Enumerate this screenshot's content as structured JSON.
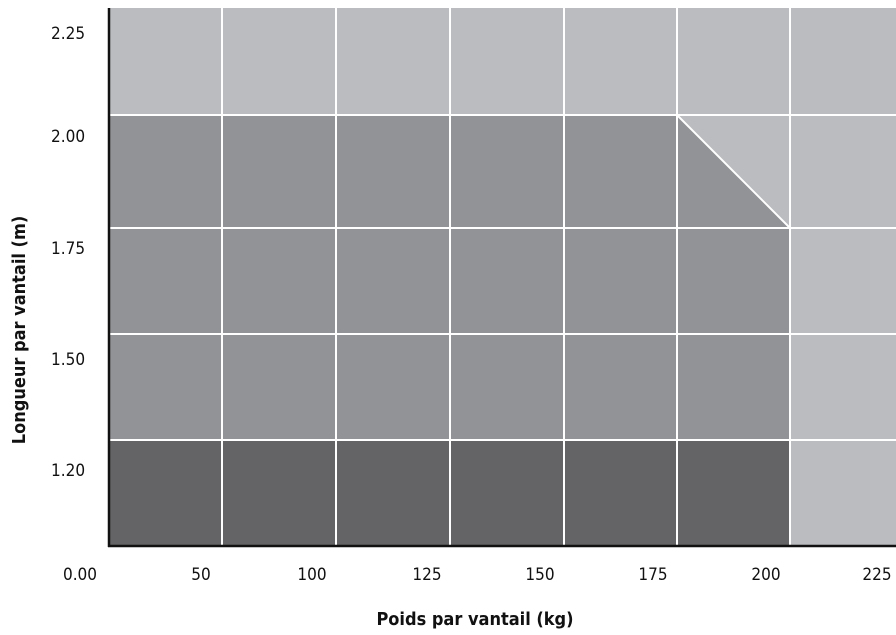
{
  "chart_data": {
    "type": "heatmap",
    "title": "",
    "xlabel": "Poids par vantail (kg)",
    "ylabel": "Longueur par vantail (m)",
    "x_origin_label": "0.00",
    "x_ticks": [
      "50",
      "100",
      "125",
      "150",
      "175",
      "200",
      "225"
    ],
    "y_ticks": [
      "1.20",
      "1.50",
      "1.75",
      "2.00",
      "2.25"
    ],
    "grid": true,
    "zone_colors": {
      "dark": "#646466",
      "medium": "#929396",
      "light": "#bbbcbf",
      "grid_line": "#ffffff",
      "axis": "#111111"
    },
    "rows": [
      {
        "y": "2.25",
        "cells": [
          "light",
          "light",
          "light",
          "light",
          "light",
          "light",
          "light"
        ]
      },
      {
        "y": "2.00",
        "cells": [
          "medium",
          "medium",
          "medium",
          "medium",
          "medium",
          "split",
          "light"
        ]
      },
      {
        "y": "1.75",
        "cells": [
          "medium",
          "medium",
          "medium",
          "medium",
          "medium",
          "medium",
          "light"
        ]
      },
      {
        "y": "1.50",
        "cells": [
          "medium",
          "medium",
          "medium",
          "medium",
          "medium",
          "medium",
          "light"
        ]
      },
      {
        "y": "1.20",
        "cells": [
          "dark",
          "dark",
          "dark",
          "dark",
          "dark",
          "dark",
          "light"
        ]
      }
    ],
    "split_cell": {
      "lower_left": "medium",
      "upper_right": "light"
    }
  }
}
